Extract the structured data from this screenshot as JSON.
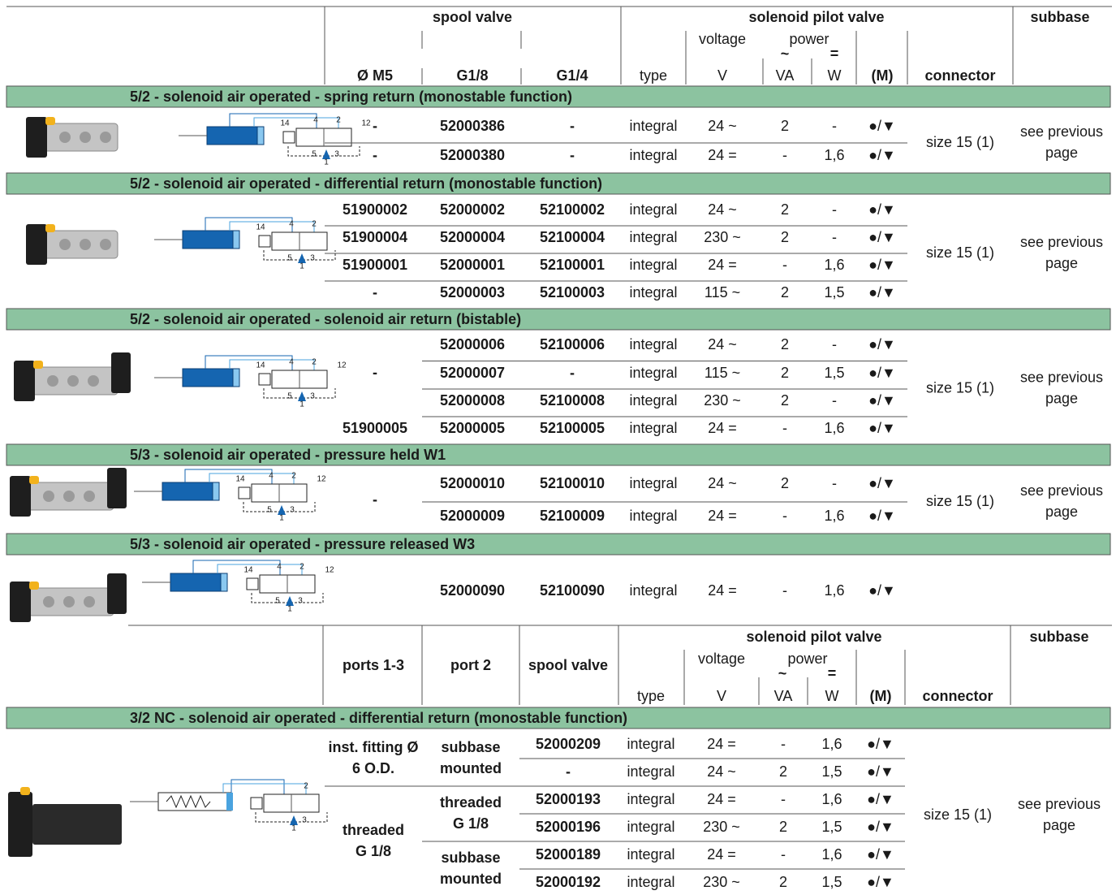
{
  "header": {
    "spool_valve": "spool valve",
    "solenoid_pilot_valve": "solenoid pilot valve",
    "subbase": "subbase",
    "voltage": "voltage",
    "power": "power",
    "ac": "~",
    "dc": "=",
    "m5": "Ø M5",
    "g18": "G1/8",
    "g14": "G1/4",
    "type": "type",
    "v": "V",
    "va": "VA",
    "w": "W",
    "m": "(M)",
    "connector": "connector"
  },
  "sections": [
    {
      "title": "5/2 - solenoid air operated - spring return (monostable function)",
      "symbol": {
        "pilot_left": "14",
        "outlet_a": "4",
        "outlet_b": "2",
        "pilot_right": "12",
        "exhaust_a": "5",
        "exhaust_b": "3",
        "supply": "1"
      },
      "rows": [
        {
          "m5": "-",
          "g18": "52000386",
          "g14": "-",
          "type": "integral",
          "voltage": "24 ~",
          "va": "2",
          "w": "-",
          "m": "●/▼"
        },
        {
          "m5": "-",
          "g18": "52000380",
          "g14": "-",
          "type": "integral",
          "voltage": "24 =",
          "va": "-",
          "w": "1,6",
          "m": "●/▼"
        }
      ],
      "connector": "size 15 (1)",
      "subbase": [
        "see previous",
        "page"
      ]
    },
    {
      "title": "5/2 - solenoid air operated - differential return (monostable function)",
      "symbol": {
        "pilot_left": "14",
        "outlet_a": "4",
        "outlet_b": "2",
        "exhaust_a": "5",
        "exhaust_b": "3",
        "supply": "1"
      },
      "rows": [
        {
          "m5": "51900002",
          "g18": "52000002",
          "g14": "52100002",
          "type": "integral",
          "voltage": "24 ~",
          "va": "2",
          "w": "-",
          "m": "●/▼"
        },
        {
          "m5": "51900004",
          "g18": "52000004",
          "g14": "52100004",
          "type": "integral",
          "voltage": "230 ~",
          "va": "2",
          "w": "-",
          "m": "●/▼"
        },
        {
          "m5": "51900001",
          "g18": "52000001",
          "g14": "52100001",
          "type": "integral",
          "voltage": "24 =",
          "va": "-",
          "w": "1,6",
          "m": "●/▼"
        },
        {
          "m5": "-",
          "g18": "52000003",
          "g14": "52100003",
          "type": "integral",
          "voltage": "115 ~",
          "va": "2",
          "w": "1,5",
          "m": "●/▼"
        }
      ],
      "connector": "size 15 (1)",
      "subbase": [
        "see previous",
        "page"
      ]
    },
    {
      "title": "5/2 - solenoid air operated - solenoid air return (bistable)",
      "symbol": {
        "pilot_left": "14",
        "outlet_a": "4",
        "outlet_b": "2",
        "pilot_right": "12",
        "exhaust_a": "5",
        "exhaust_b": "3",
        "supply": "1"
      },
      "m5": "-",
      "rows": [
        {
          "g18": "52000006",
          "g14": "52100006",
          "type": "integral",
          "voltage": "24 ~",
          "va": "2",
          "w": "-",
          "m": "●/▼"
        },
        {
          "g18": "52000007",
          "g14": "-",
          "type": "integral",
          "voltage": "115 ~",
          "va": "2",
          "w": "1,5",
          "m": "●/▼"
        },
        {
          "g18": "52000008",
          "g14": "52100008",
          "type": "integral",
          "voltage": "230 ~",
          "va": "2",
          "w": "-",
          "m": "●/▼"
        },
        {
          "m5": "51900005",
          "g18": "52000005",
          "g14": "52100005",
          "type": "integral",
          "voltage": "24 =",
          "va": "-",
          "w": "1,6",
          "m": "●/▼"
        }
      ],
      "connector": "size 15 (1)",
      "subbase": [
        "see previous",
        "page"
      ]
    },
    {
      "title": "5/3 - solenoid air operated - pressure held W1",
      "symbol": {
        "pilot_left": "14",
        "outlet_a": "4",
        "outlet_b": "2",
        "pilot_right": "12",
        "exhaust_a": "5",
        "exhaust_b": "3",
        "supply": "1"
      },
      "m5": "-",
      "rows": [
        {
          "g18": "52000010",
          "g14": "52100010",
          "type": "integral",
          "voltage": "24 ~",
          "va": "2",
          "w": "-",
          "m": "●/▼"
        },
        {
          "g18": "52000009",
          "g14": "52100009",
          "type": "integral",
          "voltage": "24 =",
          "va": "-",
          "w": "1,6",
          "m": "●/▼"
        }
      ],
      "connector": "size 15 (1)",
      "subbase": [
        "see previous",
        "page"
      ]
    },
    {
      "title": "5/3 - solenoid air operated - pressure released W3",
      "symbol": {
        "pilot_left": "14",
        "outlet_a": "4",
        "outlet_b": "2",
        "pilot_right": "12",
        "exhaust_a": "5",
        "exhaust_b": "3",
        "supply": "1"
      },
      "rows": [
        {
          "g18": "52000090",
          "g14": "52100090",
          "type": "integral",
          "voltage": "24 =",
          "va": "-",
          "w": "1,6",
          "m": "●/▼"
        }
      ]
    }
  ],
  "header2": {
    "solenoid_pilot_valve": "solenoid pilot valve",
    "subbase": "subbase",
    "ports": "ports 1-3",
    "port2": "port 2",
    "spool_valve": "spool valve",
    "voltage": "voltage",
    "power": "power",
    "ac": "~",
    "dc": "=",
    "type": "type",
    "v": "V",
    "va": "VA",
    "w": "W",
    "m": "(M)",
    "connector": "connector"
  },
  "section6": {
    "title": "3/2 NC - solenoid air operated - differential return (monostable function)",
    "symbol": {
      "outlet_b": "2",
      "exhaust_b": "3",
      "supply": "1"
    },
    "groups": [
      {
        "ports": [
          "inst. fitting Ø",
          "6 O.D."
        ],
        "port2": [
          {
            "label": [
              "subbase",
              "mounted"
            ],
            "rows": [
              {
                "spool": "52000209",
                "type": "integral",
                "voltage": "24 =",
                "va": "-",
                "w": "1,6",
                "m": "●/▼"
              },
              {
                "spool": "-",
                "type": "integral",
                "voltage": "24 ~",
                "va": "2",
                "w": "1,5",
                "m": "●/▼"
              }
            ]
          }
        ]
      },
      {
        "ports": [
          "threaded",
          "G 1/8"
        ],
        "port2": [
          {
            "label": [
              "threaded",
              "G 1/8"
            ],
            "rows": [
              {
                "spool": "52000193",
                "type": "integral",
                "voltage": "24 =",
                "va": "-",
                "w": "1,6",
                "m": "●/▼"
              },
              {
                "spool": "52000196",
                "type": "integral",
                "voltage": "230 ~",
                "va": "2",
                "w": "1,5",
                "m": "●/▼"
              }
            ]
          },
          {
            "label": [
              "subbase",
              "mounted"
            ],
            "rows": [
              {
                "spool": "52000189",
                "type": "integral",
                "voltage": "24 =",
                "va": "-",
                "w": "1,6",
                "m": "●/▼"
              },
              {
                "spool": "52000192",
                "type": "integral",
                "voltage": "230 ~",
                "va": "2",
                "w": "1,5",
                "m": "●/▼"
              }
            ]
          }
        ]
      }
    ],
    "connector": "size 15 (1)",
    "subbase": [
      "see previous",
      "page"
    ]
  }
}
